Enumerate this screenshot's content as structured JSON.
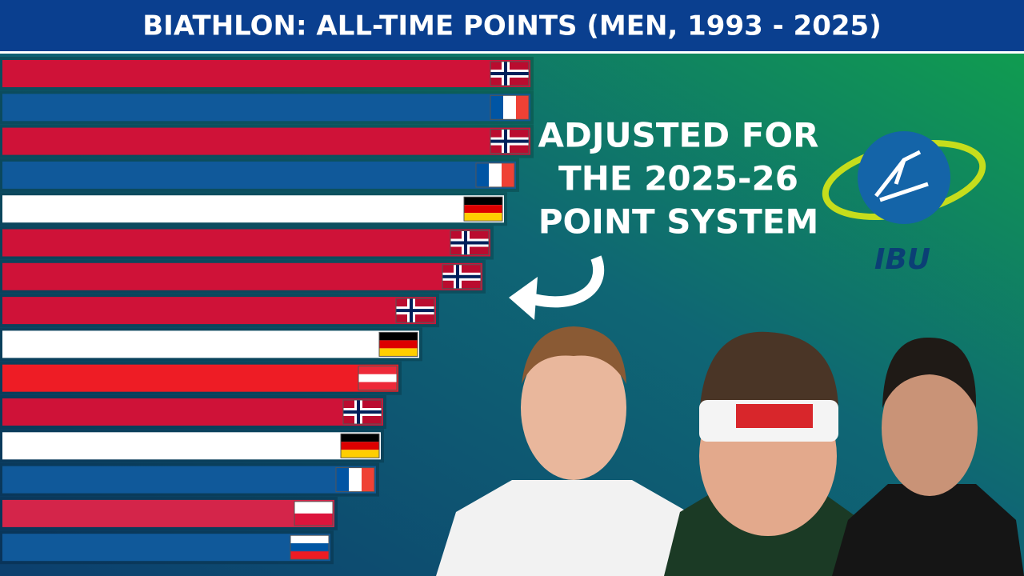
{
  "chart_data": {
    "type": "hbar",
    "title": "BIATHLON: ALL-TIME POINTS (MEN, 1993 - 2025)",
    "annotation": [
      "ADJUSTED FOR",
      "THE 2025-26",
      "POINT SYSTEM"
    ],
    "logo_text": "IBU",
    "categories": [
      null,
      null,
      null,
      null,
      null,
      null,
      null,
      null,
      null,
      null,
      null,
      null,
      null,
      null,
      null
    ],
    "values": [
      660,
      660,
      660,
      642,
      627,
      610,
      600,
      542,
      521,
      495,
      476,
      473,
      467,
      415,
      410
    ],
    "colors": [
      "#cf1238",
      "#10599a",
      "#cf1238",
      "#10599a",
      "#ffffff",
      "#cf1238",
      "#cf1238",
      "#cf1238",
      "#ffffff",
      "#ee1c25",
      "#cf1238",
      "#ffffff",
      "#10599a",
      "#d4254a",
      "#10599a"
    ]
  }
}
